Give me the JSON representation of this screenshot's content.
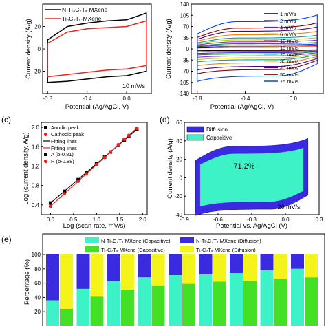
{
  "chart_data": [
    {
      "panel": "a",
      "type": "line",
      "xlabel": "Potential (Ag/AgCl, V)",
      "ylabel": "Current density (A/g)",
      "xlim": [
        -0.85,
        0.25
      ],
      "ylim": [
        -40,
        40
      ],
      "xticks": [
        "-0.8",
        "-0.4",
        "0.0"
      ],
      "xtick_values": [
        -0.8,
        -0.4,
        0.0
      ],
      "yticks": [
        "-20",
        "0",
        "20"
      ],
      "ytick_values": [
        -20,
        0,
        20
      ],
      "annotation": "10 mV/s",
      "legend_placement": "top-left",
      "series": [
        {
          "name": "N-Ti₃C₂Tₓ-MXene",
          "color": "#000000",
          "ox": [
            -0.8,
            -0.6,
            -0.4,
            -0.2,
            0.0,
            0.2
          ],
          "oy": [
            8,
            20,
            23,
            25,
            26,
            32
          ],
          "rx": [
            0.2,
            0.0,
            -0.2,
            -0.4,
            -0.6,
            -0.8
          ],
          "ry": [
            -20,
            -24,
            -25,
            -27,
            -29,
            -30
          ]
        },
        {
          "name": "Ti₃C₂Tₓ-MXene",
          "color": "#e8241c",
          "ox": [
            -0.8,
            -0.6,
            -0.4,
            -0.2,
            0.0,
            0.2
          ],
          "oy": [
            5,
            15,
            18,
            19,
            20,
            25
          ],
          "rx": [
            0.2,
            0.0,
            -0.2,
            -0.4,
            -0.6,
            -0.8
          ],
          "ry": [
            -15,
            -18,
            -19,
            -21,
            -23,
            -25
          ]
        }
      ]
    },
    {
      "panel": "b",
      "type": "line",
      "xlabel": "Potential (Ag/AgCl, V)",
      "ylabel": "Current density (A/g)",
      "xlim": [
        -0.85,
        0.25
      ],
      "ylim": [
        -140,
        140
      ],
      "xticks": [
        "-0.8",
        "-0.4",
        "0.0"
      ],
      "xtick_values": [
        -0.8,
        -0.4,
        0.0
      ],
      "yticks": [
        "-140",
        "-105",
        "-70",
        "-35",
        "0",
        "35",
        "70",
        "105",
        "140"
      ],
      "ytick_values": [
        -140,
        -105,
        -70,
        -35,
        0,
        35,
        70,
        105,
        140
      ],
      "legend_placement": "right",
      "rates": [
        "1 mV/s",
        "2 mV/s",
        "4 mV/s",
        "6 mV/s",
        "10 mV/s",
        "15 mV/s",
        "20 mV/s",
        "30 mV/s",
        "40 mV/s",
        "50 mV/s",
        "75 mV/s"
      ],
      "colors": [
        "#000000",
        "#e8241c",
        "#1f3cff",
        "#0a8f2a",
        "#8b2be2",
        "#c8c800",
        "#00a0a0",
        "#ff7f00",
        "#4b0082",
        "#8b0000",
        "#0040ff"
      ],
      "amplitudes": [
        5,
        8,
        12,
        16,
        22,
        28,
        34,
        44,
        55,
        65,
        85
      ]
    },
    {
      "panel": "c",
      "type": "scatter",
      "xlabel": "Log (scan rate, mV/s)",
      "ylabel": "Log (current density, A/g)",
      "xlim": [
        -0.2,
        2.1
      ],
      "ylim": [
        0.2,
        2.1
      ],
      "xticks": [
        "0.0",
        "0.5",
        "1.0",
        "1.5",
        "2.0"
      ],
      "xtick_values": [
        0.0,
        0.5,
        1.0,
        1.5,
        2.0
      ],
      "yticks": [
        "0.4",
        "0.8",
        "1.2",
        "1.6",
        "2.0"
      ],
      "ytick_values": [
        0.4,
        0.8,
        1.2,
        1.6,
        2.0
      ],
      "legend_placement": "top-left",
      "legend": [
        "Anodic peak",
        "Cathodic peak",
        "Fitting lines",
        "Fitting lines",
        "A (b-0.81)",
        "R (b-0.88)"
      ],
      "x": [
        0.0,
        0.301,
        0.602,
        0.778,
        1.0,
        1.176,
        1.301,
        1.477,
        1.602,
        1.699,
        1.875
      ],
      "anodic": [
        0.44,
        0.68,
        0.92,
        1.07,
        1.25,
        1.39,
        1.49,
        1.63,
        1.73,
        1.81,
        1.96
      ],
      "cathodic": [
        0.37,
        0.63,
        0.89,
        1.04,
        1.23,
        1.38,
        1.49,
        1.64,
        1.75,
        1.83,
        1.98
      ]
    },
    {
      "panel": "d",
      "type": "area",
      "xlabel": "Potential vs. Ag/AgCl (V)",
      "ylabel": "Current density (A/g)",
      "xlim": [
        -0.9,
        0.3
      ],
      "ylim": [
        -40,
        60
      ],
      "xticks": [
        "-0.9",
        "-0.6",
        "-0.3",
        "0.0",
        "0.3"
      ],
      "xtick_values": [
        -0.9,
        -0.6,
        -0.3,
        0.0,
        0.3
      ],
      "yticks": [
        "-40",
        "-20",
        "0",
        "20",
        "40",
        "60"
      ],
      "ytick_values": [
        -40,
        -20,
        0,
        20,
        40,
        60
      ],
      "legend": [
        "Diffusion",
        "Capacitive"
      ],
      "legend_placement": "top-left",
      "capacitive_percent": "71.2%",
      "annotation": "20 mV/s"
    },
    {
      "panel": "e",
      "type": "bar",
      "ylabel": "Percentage (%)",
      "ylim": [
        0,
        100
      ],
      "yticks": [
        "20",
        "40",
        "60",
        "80",
        "100"
      ],
      "ytick_values": [
        20,
        40,
        60,
        80,
        100
      ],
      "legend_placement": "top",
      "legend": [
        "N-Ti₃C₂Tₓ-MXene (Capacitive)",
        "N-Ti₃C₂Tₓ-MXene (Diffusion)",
        "Ti₃C₂Tₓ-MXene (Capacitive)",
        "Ti₃C₂Tₓ-MXene (Diffusion)"
      ],
      "n_capacitive": [
        36,
        52,
        63,
        68,
        71,
        72,
        74,
        78,
        80
      ],
      "t_capacitive": [
        24,
        41,
        51,
        56,
        59,
        62,
        63,
        66,
        68
      ]
    }
  ],
  "panel_labels": {
    "c": "(c)",
    "d": "(d)",
    "e": "(e)"
  },
  "colors": {
    "diffusion": "#3a2be0",
    "capacitive": "#3ef2c8",
    "t_capacitive": "#44e026",
    "t_diffusion": "#f4f41a"
  }
}
